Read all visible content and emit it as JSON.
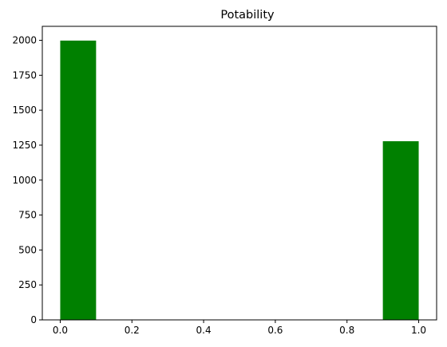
{
  "chart_data": {
    "type": "bar",
    "title": "Potability",
    "xlabel": "",
    "ylabel": "",
    "xlim": [
      -0.05,
      1.05
    ],
    "ylim": [
      0,
      2100
    ],
    "grid": false,
    "bar_color": "#008000",
    "bins": [
      {
        "x0": 0.0,
        "x1": 0.1,
        "value": 1998
      },
      {
        "x0": 0.9,
        "x1": 1.0,
        "value": 1278
      }
    ],
    "x_ticks": [
      0.0,
      0.2,
      0.4,
      0.6,
      0.8,
      1.0
    ],
    "x_tick_labels": [
      "0.0",
      "0.2",
      "0.4",
      "0.6",
      "0.8",
      "1.0"
    ],
    "y_ticks": [
      0,
      250,
      500,
      750,
      1000,
      1250,
      1500,
      1750,
      2000
    ],
    "y_tick_labels": [
      "0",
      "250",
      "500",
      "750",
      "1000",
      "1250",
      "1500",
      "1750",
      "2000"
    ]
  }
}
